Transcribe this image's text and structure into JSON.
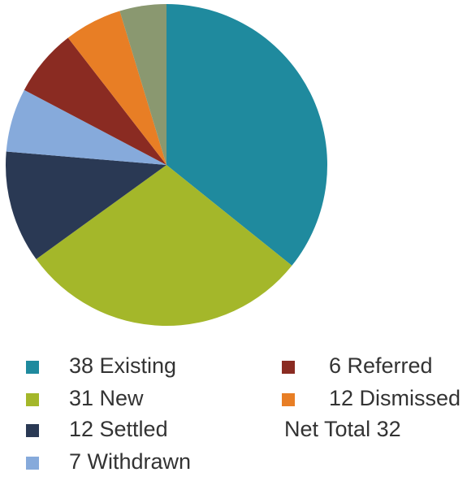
{
  "chart_data": {
    "type": "pie",
    "categories": [
      "38 Existing",
      "31 New",
      "12 Settled",
      "7 Withdrawn",
      "6 Referred",
      "12 Dismissed",
      null
    ],
    "values": [
      35.8,
      29.3,
      11.3,
      6.4,
      6.8,
      5.8,
      4.7
    ],
    "colors": [
      "#1f8a9e",
      "#a4b72a",
      "#2a3954",
      "#86aadb",
      "#8a2b22",
      "#e87e25",
      "#8a9870"
    ],
    "net_total": "Net Total 32"
  }
}
